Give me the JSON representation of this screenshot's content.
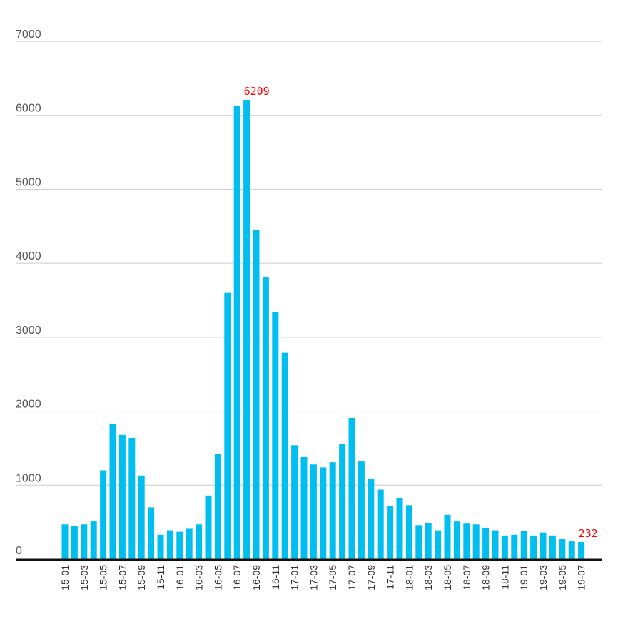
{
  "chart_data": {
    "type": "bar",
    "title": "",
    "xlabel": "",
    "ylabel": "",
    "ylim": [
      0,
      7000
    ],
    "yticks": [
      0,
      1000,
      2000,
      3000,
      4000,
      5000,
      6000,
      7000
    ],
    "grid": true,
    "legend": "none",
    "bar_color": "#00BFF0",
    "annotation_color": "#FF0000",
    "categories": [
      "15-01",
      "15-02",
      "15-03",
      "15-04",
      "15-05",
      "15-06",
      "15-07",
      "15-08",
      "15-09",
      "15-10",
      "15-11",
      "15-12",
      "16-01",
      "16-02",
      "16-03",
      "16-04",
      "16-05",
      "16-06",
      "16-07",
      "16-08",
      "16-09",
      "16-10",
      "16-11",
      "16-12",
      "17-01",
      "17-02",
      "17-03",
      "17-04",
      "17-05",
      "17-06",
      "17-07",
      "17-08",
      "17-09",
      "17-10",
      "17-11",
      "17-12",
      "18-01",
      "18-02",
      "18-03",
      "18-04",
      "18-05",
      "18-06",
      "18-07",
      "18-08",
      "18-09",
      "18-10",
      "18-11",
      "18-12",
      "19-01",
      "19-02",
      "19-03",
      "19-04",
      "19-05",
      "19-06",
      "19-07"
    ],
    "tick_labels": [
      "15-01",
      "15-03",
      "15-05",
      "15-07",
      "15-09",
      "15-11",
      "16-01",
      "16-03",
      "16-05",
      "16-07",
      "16-09",
      "16-11",
      "17-01",
      "17-03",
      "17-05",
      "17-07",
      "17-09",
      "17-11",
      "18-01",
      "18-03",
      "18-05",
      "18-07",
      "18-09",
      "18-11",
      "19-01",
      "19-03",
      "19-05",
      "19-07"
    ],
    "values": [
      470,
      450,
      470,
      510,
      1200,
      1830,
      1680,
      1640,
      1130,
      700,
      330,
      390,
      370,
      410,
      470,
      860,
      1420,
      3600,
      6130,
      6209,
      4450,
      3810,
      3340,
      2790,
      1540,
      1380,
      1280,
      1240,
      1310,
      1560,
      1910,
      1320,
      1090,
      940,
      720,
      830,
      730,
      460,
      490,
      390,
      600,
      510,
      480,
      470,
      420,
      390,
      320,
      330,
      380,
      320,
      360,
      320,
      270,
      240,
      232
    ],
    "annotations": [
      {
        "category": "16-08",
        "text": "6209"
      },
      {
        "category": "19-07",
        "text": "232"
      }
    ]
  }
}
